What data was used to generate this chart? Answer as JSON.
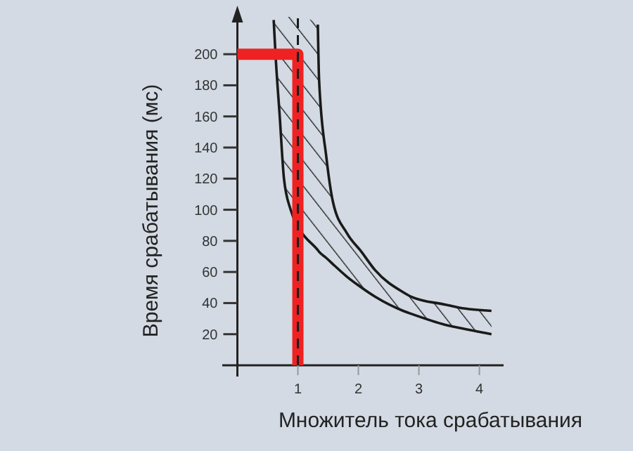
{
  "chart_data": {
    "type": "line",
    "xlabel": "Множитель тока срабатывания",
    "ylabel": "Время срабатывания (мс)",
    "xlim": [
      -0.25,
      4.4
    ],
    "ylim": [
      0,
      224
    ],
    "xticks": [
      1,
      2,
      3,
      4
    ],
    "yticks": [
      20,
      40,
      60,
      80,
      100,
      120,
      140,
      160,
      180,
      200
    ],
    "grid": false,
    "marker": "none",
    "series": [
      {
        "color": "#1a1a1a",
        "x": [
          0.6,
          0.63,
          0.7,
          0.77,
          0.88,
          1.02,
          1.33,
          1.35,
          1.47,
          1.58,
          1.81,
          2.05,
          2.28,
          2.74,
          2.88,
          3.44,
          3.67,
          4.2
        ],
        "values": [
          222,
          200,
          160,
          120,
          100,
          88,
          74,
          73,
          69,
          65,
          57,
          50,
          44,
          35,
          33,
          26,
          24,
          20
        ],
        "lower": [
          222,
          200,
          160,
          120,
          100,
          88,
          74,
          73,
          69,
          65,
          57,
          50,
          44,
          35,
          33,
          26,
          24,
          20
        ],
        "upper": [
          224,
          224,
          224,
          224,
          224,
          224,
          219,
          184,
          134,
          105,
          85,
          73,
          61,
          47,
          44,
          39,
          37,
          35
        ]
      },
      {
        "color": "#1a1a1a",
        "x": [
          1.33,
          1.35,
          1.47,
          1.58,
          1.81,
          2.05,
          2.28,
          2.74,
          2.88,
          3.44,
          3.67,
          4.2
        ],
        "values": [
          219,
          184,
          134,
          105,
          85,
          73,
          61,
          47,
          44,
          39,
          37,
          35
        ]
      },
      {
        "color": "#ee2222",
        "x": [
          0,
          1,
          1
        ],
        "values": [
          200,
          200,
          0
        ]
      }
    ],
    "ref_lines": [
      {
        "axis": "x",
        "value": 1,
        "color": "#1a1a1a",
        "line_style": "dashed"
      }
    ]
  }
}
